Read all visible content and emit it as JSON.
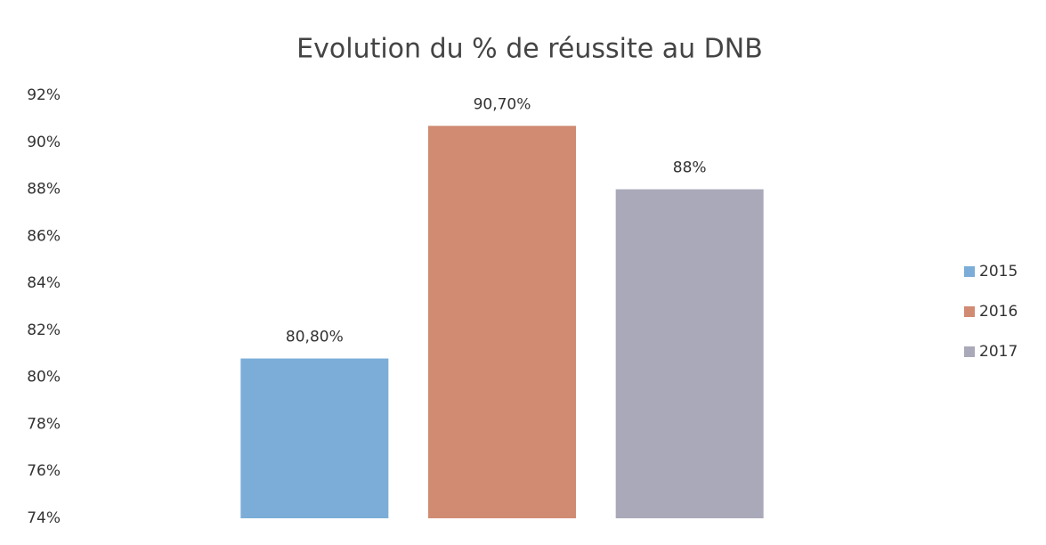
{
  "chart_data": {
    "type": "bar",
    "title": "Evolution du % de réussite au DNB",
    "series": [
      {
        "name": "2015",
        "color": "#7badd8",
        "values": [
          80.8
        ],
        "value_labels": [
          "80,80%"
        ]
      },
      {
        "name": "2016",
        "color": "#d08b72",
        "values": [
          90.7
        ],
        "value_labels": [
          "90,70%"
        ]
      },
      {
        "name": "2017",
        "color": "#a9a9b9",
        "values": [
          88
        ],
        "value_labels": [
          "88%"
        ]
      }
    ],
    "ylim": [
      74,
      92
    ],
    "yticks": [
      {
        "value": 74,
        "label": "74%"
      },
      {
        "value": 76,
        "label": "76%"
      },
      {
        "value": 78,
        "label": "78%"
      },
      {
        "value": 80,
        "label": "80%"
      },
      {
        "value": 82,
        "label": "82%"
      },
      {
        "value": 84,
        "label": "84%"
      },
      {
        "value": 86,
        "label": "86%"
      },
      {
        "value": 88,
        "label": "88%"
      },
      {
        "value": 90,
        "label": "90%"
      },
      {
        "value": 92,
        "label": "92%"
      }
    ],
    "grid": false,
    "legend": "right"
  }
}
